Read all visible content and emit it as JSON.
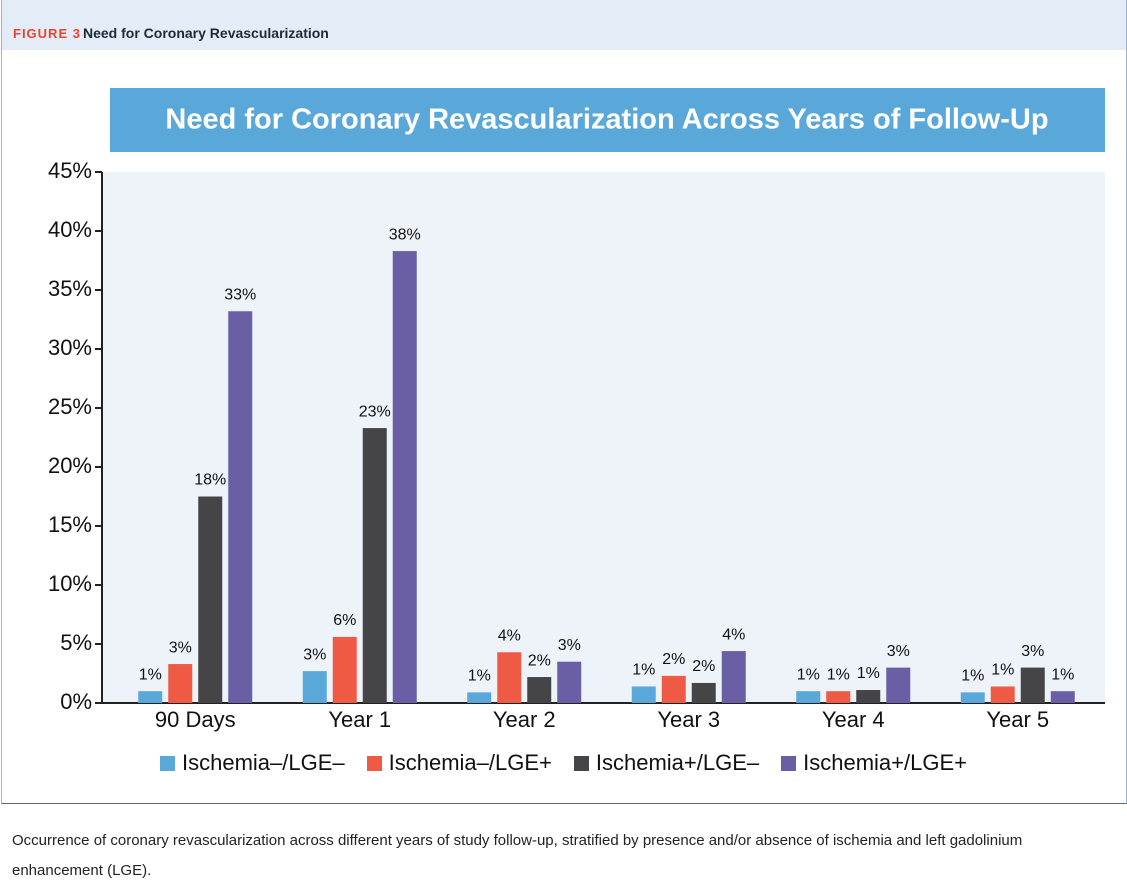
{
  "figure": {
    "label": "FIGURE 3",
    "title": "Need for Coronary Revascularization",
    "caption": "Occurrence of coronary revascularization across different years of study follow-up, stratified by presence and/or absence of ischemia and left gadolinium enhancement (LGE)."
  },
  "chart_data": {
    "type": "bar",
    "title": "Need for Coronary Revascularization Across Years of Follow-Up",
    "categories": [
      "90 Days",
      "Year 1",
      "Year 2",
      "Year 3",
      "Year 4",
      "Year 5"
    ],
    "series": [
      {
        "name": "Ischemia–/LGE–",
        "color": "#5aa7da",
        "values": [
          1.0,
          2.7,
          0.9,
          1.4,
          1.0,
          0.9
        ],
        "value_labels": [
          "1%",
          "3%",
          "1%",
          "1%",
          "1%",
          "1%"
        ]
      },
      {
        "name": "Ischemia–/LGE+",
        "color": "#ef5a45",
        "values": [
          3.3,
          5.6,
          4.3,
          2.3,
          1.0,
          1.4
        ],
        "value_labels": [
          "3%",
          "6%",
          "4%",
          "2%",
          "1%",
          "1%"
        ]
      },
      {
        "name": "Ischemia+/LGE–",
        "color": "#454547",
        "values": [
          17.5,
          23.3,
          2.2,
          1.7,
          1.1,
          3.0
        ],
        "value_labels": [
          "18%",
          "23%",
          "2%",
          "2%",
          "1%",
          "3%"
        ]
      },
      {
        "name": "Ischemia+/LGE+",
        "color": "#6a5fa5",
        "values": [
          33.2,
          38.3,
          3.5,
          4.4,
          3.0,
          1.0
        ],
        "value_labels": [
          "33%",
          "38%",
          "3%",
          "4%",
          "3%",
          "1%"
        ]
      }
    ],
    "ylim": [
      0,
      45
    ],
    "yticks": [
      {
        "value": 0,
        "label": "0%"
      },
      {
        "value": 5,
        "label": "5%"
      },
      {
        "value": 10,
        "label": "10%"
      },
      {
        "value": 15,
        "label": "15%"
      },
      {
        "value": 20,
        "label": "20%"
      },
      {
        "value": 25,
        "label": "25%"
      },
      {
        "value": 30,
        "label": "30%"
      },
      {
        "value": 35,
        "label": "35%"
      },
      {
        "value": 40,
        "label": "40%"
      },
      {
        "value": 45,
        "label": "45%"
      }
    ],
    "grid": false,
    "legend": "bottom"
  }
}
